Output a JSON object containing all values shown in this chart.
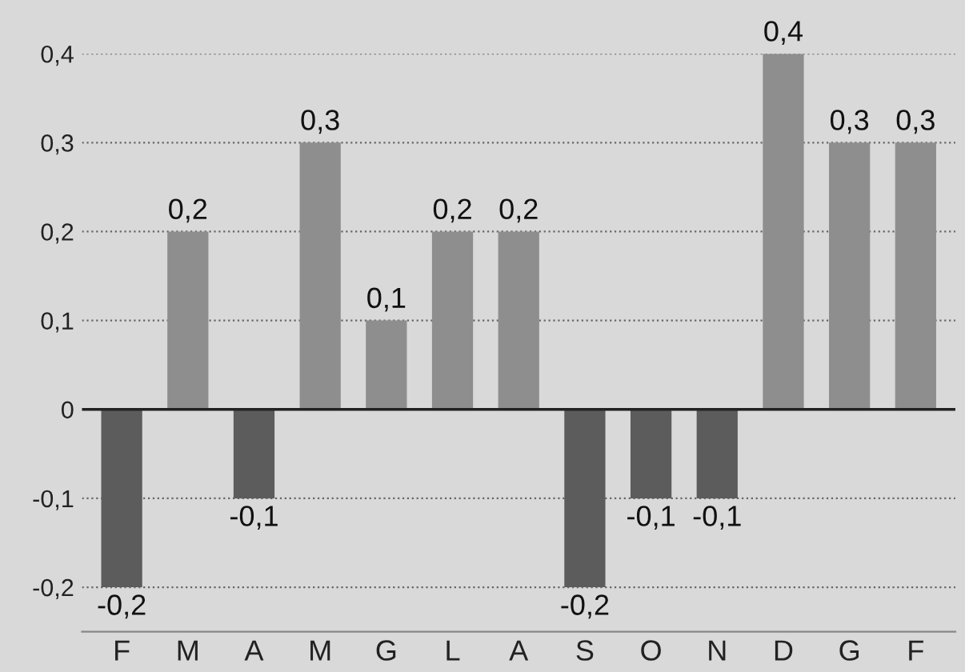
{
  "chart_data": {
    "type": "bar",
    "categories": [
      "F",
      "M",
      "A",
      "M",
      "G",
      "L",
      "A",
      "S",
      "O",
      "N",
      "D",
      "G",
      "F"
    ],
    "values": [
      -0.2,
      0.2,
      -0.1,
      0.3,
      0.1,
      0.2,
      0.2,
      -0.2,
      -0.1,
      -0.1,
      0.4,
      0.3,
      0.3
    ],
    "colors": [
      "#5c5c5c",
      "#8e8e8e",
      "#5c5c5c",
      "#8e8e8e",
      "#8e8e8e",
      "#8e8e8e",
      "#8e8e8e",
      "#5c5c5c",
      "#5c5c5c",
      "#5c5c5c",
      "#8e8e8e",
      "#8e8e8e",
      "#8e8e8e"
    ],
    "value_labels": [
      "-0,2",
      "0,2",
      "-0,1",
      "0,3",
      "0,1",
      "0,2",
      "0,2",
      "-0,2",
      "-0,1",
      "-0,1",
      "0,4",
      "0,3",
      "0,3"
    ],
    "ylim": [
      -0.25,
      0.4
    ],
    "yticks": [
      {
        "value": -0.2,
        "label": "-0,2"
      },
      {
        "value": -0.1,
        "label": "-0,1"
      },
      {
        "value": 0,
        "label": "0"
      },
      {
        "value": 0.1,
        "label": "0,1"
      },
      {
        "value": 0.2,
        "label": "0,2"
      },
      {
        "value": 0.3,
        "label": "0,3"
      },
      {
        "value": 0.4,
        "label": "0,4"
      }
    ],
    "grid": "y"
  }
}
